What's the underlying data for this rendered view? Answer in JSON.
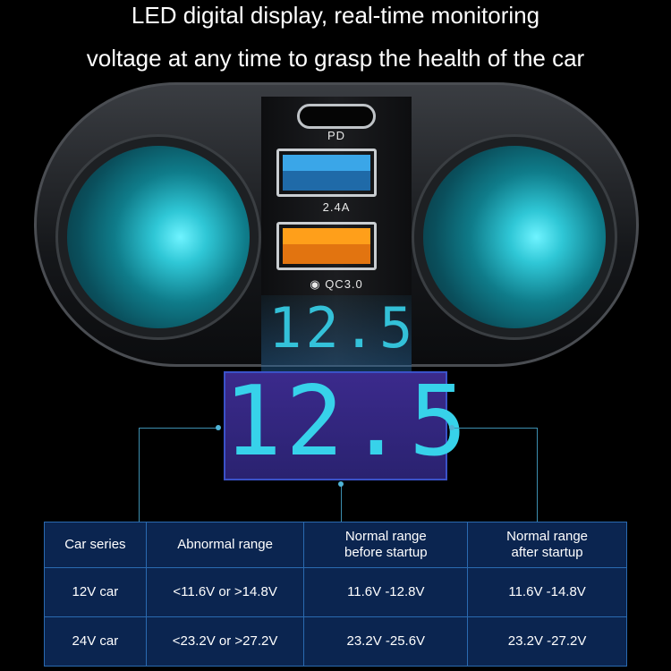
{
  "headline": {
    "line1": "LED digital display, real-time monitoring",
    "line2": "voltage at any time to grasp the health of the car"
  },
  "device": {
    "port_pd_label": "PD",
    "port_usb1_label": "2.4A",
    "port_usb2_label": "QC3.0",
    "usb1_color": "#3aa6e8",
    "usb2_color": "#ff9f1a",
    "display_reading": "12.5",
    "display_color": "#37d2ea"
  },
  "table": {
    "headers": [
      "Car series",
      "Abnormal range",
      "Normal range before startup",
      "Normal range after startup"
    ],
    "rows": [
      [
        "12V car",
        "<11.6V or >14.8V",
        "11.6V -12.8V",
        "11.6V -14.8V"
      ],
      [
        "24V car",
        "<23.2V or >27.2V",
        "23.2V -25.6V",
        "23.2V -27.2V"
      ]
    ]
  }
}
